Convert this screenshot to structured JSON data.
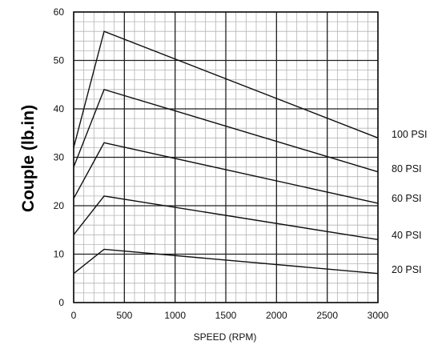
{
  "chart_data": {
    "type": "line",
    "title": "",
    "xlabel": "SPEED (RPM)",
    "ylabel": "Couple (lb.in)",
    "xlim": [
      0,
      3000
    ],
    "ylim": [
      0,
      60
    ],
    "xticks": [
      "0",
      "500",
      "1000",
      "1500",
      "2000",
      "2500",
      "3000"
    ],
    "yticks": [
      "0",
      "10",
      "20",
      "30",
      "40",
      "50",
      "60"
    ],
    "grid": true,
    "legend": "labels at right end of each line",
    "series": [
      {
        "name": "100 PSI",
        "x": [
          0,
          300,
          3000
        ],
        "y": [
          32,
          56,
          34
        ]
      },
      {
        "name": "80 PSI",
        "x": [
          0,
          300,
          3000
        ],
        "y": [
          28,
          44,
          27
        ]
      },
      {
        "name": "60 PSI",
        "x": [
          0,
          300,
          3000
        ],
        "y": [
          21.5,
          33,
          20.5
        ]
      },
      {
        "name": "40 PSI",
        "x": [
          0,
          300,
          3000
        ],
        "y": [
          14,
          22,
          13
        ]
      },
      {
        "name": "20 PSI",
        "x": [
          0,
          300,
          3000
        ],
        "y": [
          6,
          11,
          6
        ]
      }
    ]
  }
}
